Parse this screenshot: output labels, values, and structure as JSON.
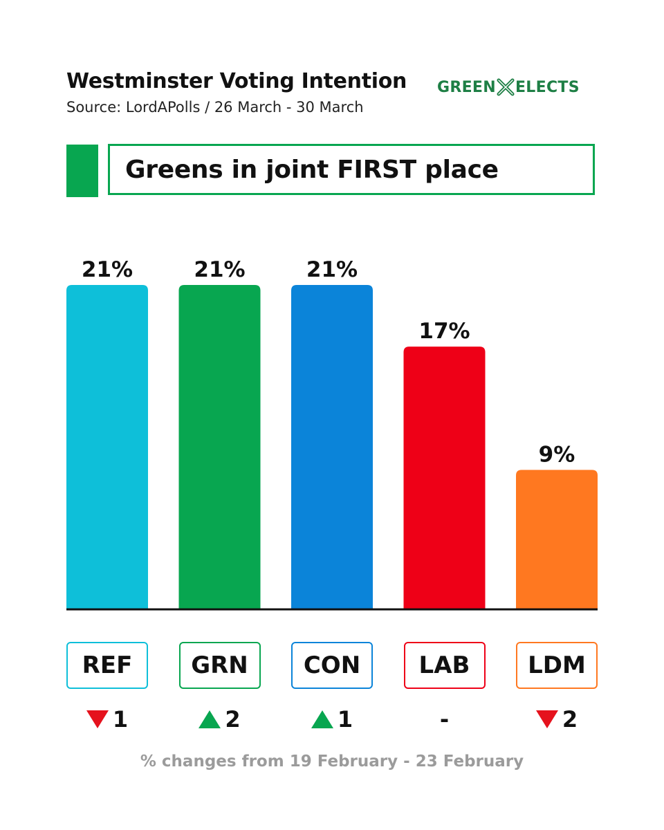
{
  "header": {
    "title": "Westminster Voting Intention",
    "subtitle": "Source: LordAPolls / 26 March - 30 March",
    "brand_left": "GREEN",
    "brand_right": "ELECTS"
  },
  "headline": "Greens in joint FIRST place",
  "chart_data": {
    "type": "bar",
    "title": "Westminster Voting Intention",
    "categories": [
      "REF",
      "GRN",
      "CON",
      "LAB",
      "LDM"
    ],
    "values": [
      21,
      21,
      21,
      17,
      9
    ],
    "value_labels": [
      "21%",
      "21%",
      "21%",
      "17%",
      "9%"
    ],
    "colors": [
      "#0ebfd9",
      "#08a650",
      "#0b84d9",
      "#ee0017",
      "#ff7820"
    ],
    "changes": [
      {
        "direction": "down",
        "text": "1"
      },
      {
        "direction": "up",
        "text": "2"
      },
      {
        "direction": "up",
        "text": "1"
      },
      {
        "direction": "none",
        "text": "-"
      },
      {
        "direction": "down",
        "text": "2"
      }
    ],
    "ylim": [
      0,
      21
    ],
    "xlabel": "",
    "ylabel": "",
    "grid": false
  },
  "footnote": "% changes from 19 February - 23 February"
}
